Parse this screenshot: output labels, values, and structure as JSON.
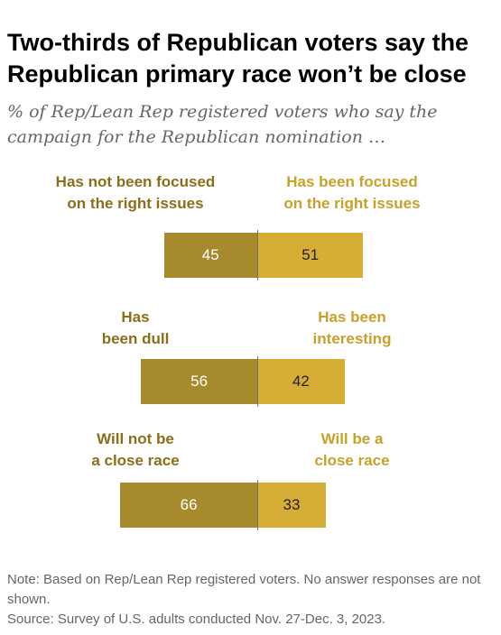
{
  "title": "Two-thirds of Republican voters say the Republican primary race won’t be close",
  "subtitle": "% of Rep/Lean Rep registered voters who say the campaign for the Republican nomination …",
  "note_line1": "Note: Based on Rep/Lean Rep registered voters. No answer responses are not shown.",
  "note_line2": "Source: Survey of U.S. adults conducted Nov. 27-Dec. 3, 2023.",
  "colors": {
    "negative": "#A78A2B",
    "positive": "#D6AD35",
    "negative_label": "#8C6E1A",
    "positive_label": "#C9A02A"
  },
  "chart_data": {
    "type": "bar",
    "orientation": "horizontal-diverging",
    "title": "Two-thirds of Republican voters say the Republican primary race won’t be close",
    "rows": [
      {
        "left_label": "Has not been focused on the right issues",
        "right_label": "Has been focused on the right issues",
        "left_value": 45,
        "right_value": 51
      },
      {
        "left_label": "Has been dull",
        "right_label": "Has been interesting",
        "left_value": 56,
        "right_value": 42
      },
      {
        "left_label": "Will not be a close race",
        "right_label": "Will be a close race",
        "left_value": 66,
        "right_value": 33
      }
    ]
  }
}
